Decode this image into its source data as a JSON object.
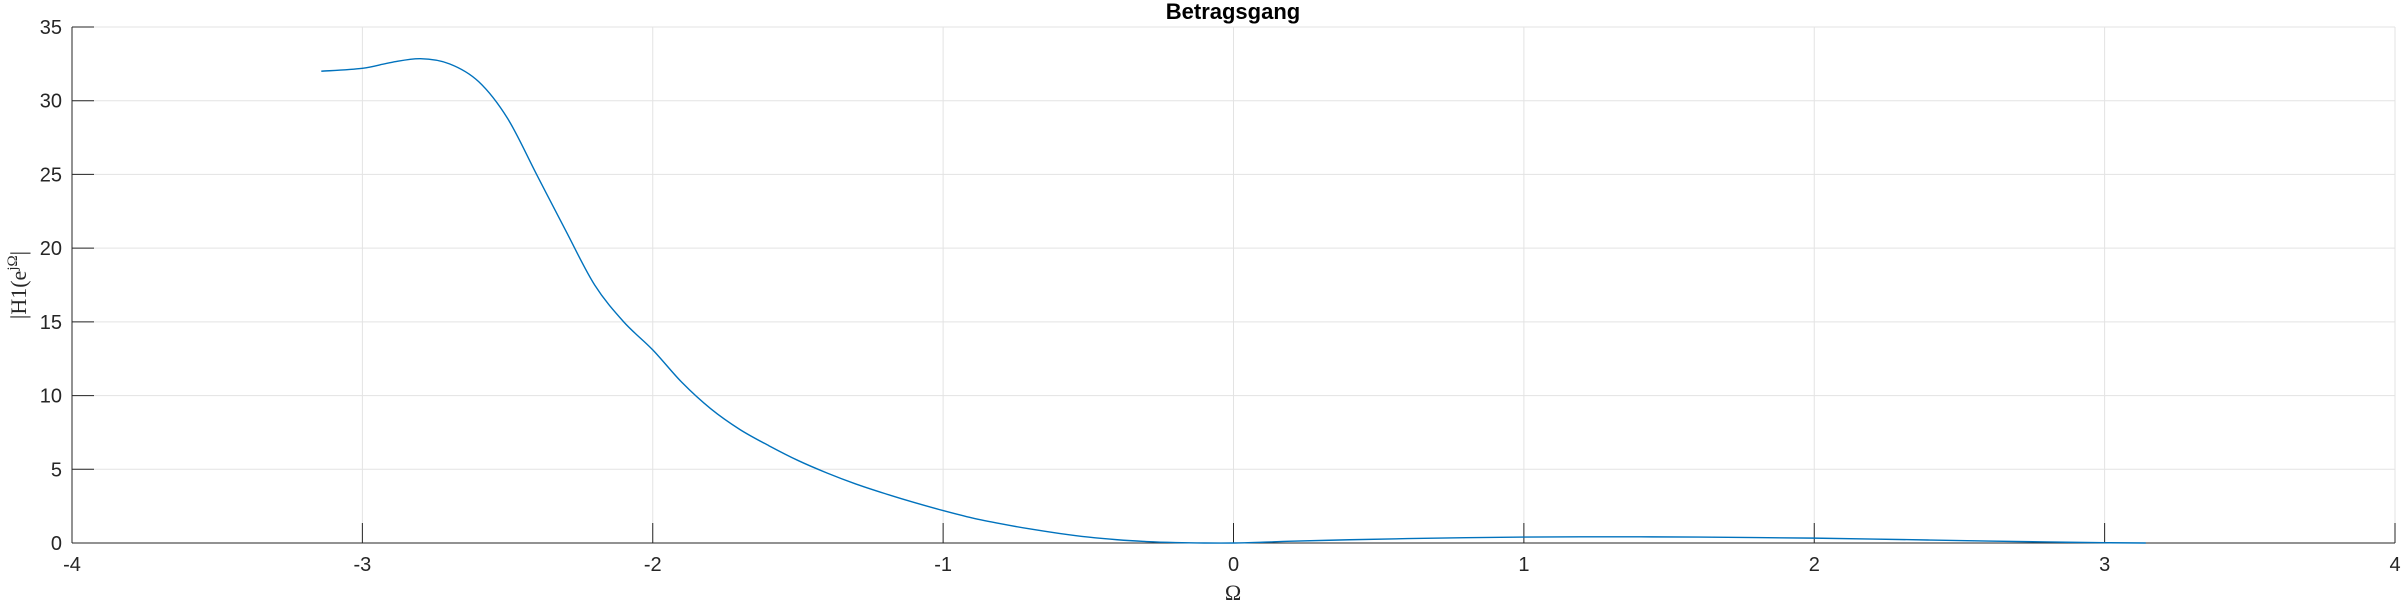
{
  "chart_data": {
    "type": "line",
    "title": "Betragsgang",
    "xlabel": "Ω",
    "ylabel": "|H1(e^{jΩ}|",
    "ylabel_parts": {
      "pre": "|H1(e",
      "sup": "jΩ",
      "post": "|"
    },
    "xlim": [
      -4,
      4
    ],
    "ylim": [
      0,
      35
    ],
    "xticks": [
      -4,
      -3,
      -2,
      -1,
      0,
      1,
      2,
      3,
      4
    ],
    "yticks": [
      0,
      5,
      10,
      15,
      20,
      25,
      30,
      35
    ],
    "xtick_labels": [
      "-4",
      "-3",
      "-2",
      "-1",
      "0",
      "1",
      "2",
      "3",
      "4"
    ],
    "ytick_labels": [
      "0",
      "5",
      "10",
      "15",
      "20",
      "25",
      "30",
      "35"
    ],
    "grid": true,
    "series_color": "#0072BD",
    "series": [
      {
        "x": [
          -3.1416,
          -3.0,
          -2.9,
          -2.8,
          -2.7,
          -2.6,
          -2.5,
          -2.4,
          -2.3,
          -2.2,
          -2.1,
          -2.0,
          -1.9,
          -1.8,
          -1.7,
          -1.6,
          -1.5,
          -1.4,
          -1.3,
          -1.2,
          -1.1,
          -1.0,
          -0.9,
          -0.8,
          -0.7,
          -0.6,
          -0.5,
          -0.4,
          -0.3,
          -0.2,
          -0.1,
          0.0,
          0.1,
          0.2,
          0.4,
          0.6,
          0.8,
          1.0,
          1.2,
          1.4,
          1.6,
          1.8,
          2.0,
          2.2,
          2.4,
          2.6,
          2.8,
          3.0,
          3.1416
        ],
        "y": [
          32.0,
          32.2,
          32.6,
          32.85,
          32.5,
          31.3,
          28.8,
          25.0,
          21.2,
          17.5,
          15.0,
          13.1,
          10.9,
          9.1,
          7.7,
          6.6,
          5.6,
          4.75,
          4.0,
          3.35,
          2.75,
          2.2,
          1.7,
          1.3,
          0.95,
          0.65,
          0.4,
          0.22,
          0.1,
          0.03,
          0.0,
          0.0,
          0.05,
          0.12,
          0.22,
          0.3,
          0.36,
          0.4,
          0.42,
          0.42,
          0.4,
          0.37,
          0.33,
          0.27,
          0.2,
          0.13,
          0.07,
          0.02,
          0.0
        ]
      }
    ]
  }
}
